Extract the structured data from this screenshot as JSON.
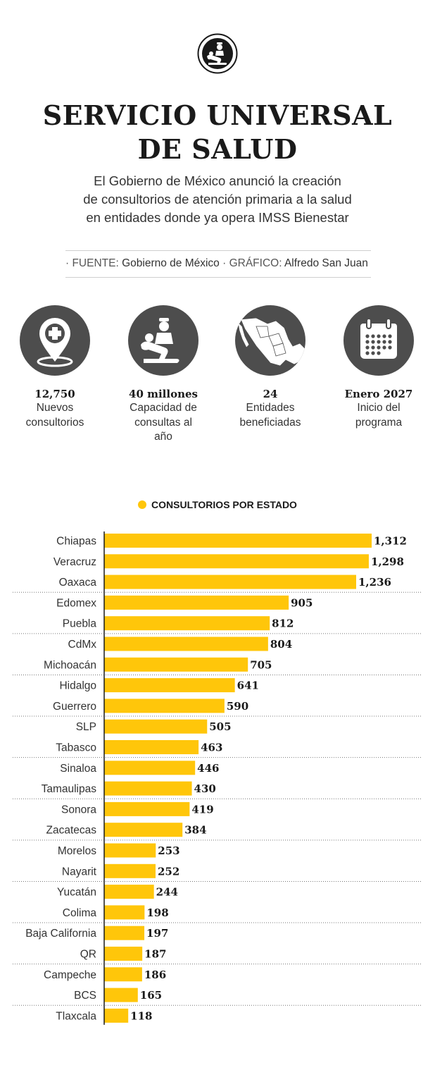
{
  "header": {
    "logo_icon": "patient-care-icon",
    "title_lines": [
      "SERVICIO UNIVERSAL",
      "DE SALUD"
    ],
    "subtitle_lines": [
      "El Gobierno de México anunció la creación",
      "de consultorios de atención primaria a la salud",
      "en entidades donde ya opera IMSS Bienestar"
    ],
    "source": {
      "source_label": "· FUENTE:",
      "source_value": "Gobierno de México",
      "graphic_label": "· GRÁFICO:",
      "graphic_value": "Alfredo San Juan"
    }
  },
  "stats": [
    {
      "icon": "location-pin-medical-icon",
      "value": "12,750",
      "label": "Nuevos consultorios"
    },
    {
      "icon": "patient-care-icon",
      "value": "40 millones",
      "label": "Capacidad de consultas al año"
    },
    {
      "icon": "mexico-map-icon",
      "value": "24",
      "label": "Entidades beneficiadas"
    },
    {
      "icon": "calendar-icon",
      "value": "Enero 2027",
      "label": "Inicio del programa"
    }
  ],
  "colors": {
    "bar": "#FFC60A",
    "icon_bg": "#4d4d4d",
    "text": "#333333",
    "heading": "#1a1a1a"
  },
  "chart_data": {
    "type": "bar",
    "orientation": "horizontal",
    "legend": "CONSULTORIOS POR ESTADO",
    "categories": [
      "Chiapas",
      "Veracruz",
      "Oaxaca",
      "Edomex",
      "Puebla",
      "CdMx",
      "Michoacán",
      "Hidalgo",
      "Guerrero",
      "SLP",
      "Tabasco",
      "Sinaloa",
      "Tamaulipas",
      "Sonora",
      "Zacatecas",
      "Morelos",
      "Nayarit",
      "Yucatán",
      "Colima",
      "Baja California",
      "QR",
      "Campeche",
      "BCS",
      "Tlaxcala"
    ],
    "values": [
      1312,
      1298,
      1236,
      905,
      812,
      804,
      705,
      641,
      590,
      505,
      463,
      446,
      430,
      419,
      384,
      253,
      252,
      244,
      198,
      197,
      187,
      186,
      165,
      118
    ],
    "value_labels": [
      "1,312",
      "1,298",
      "1,236",
      "905",
      "812",
      "804",
      "705",
      "641",
      "590",
      "505",
      "463",
      "446",
      "430",
      "419",
      "384",
      "253",
      "252",
      "244",
      "198",
      "197",
      "187",
      "186",
      "165",
      "118"
    ],
    "xlim": [
      0,
      1312
    ],
    "grid": false,
    "group_separators_after": [
      2,
      4,
      6,
      8,
      10,
      12,
      14,
      16,
      18,
      20,
      22
    ]
  }
}
